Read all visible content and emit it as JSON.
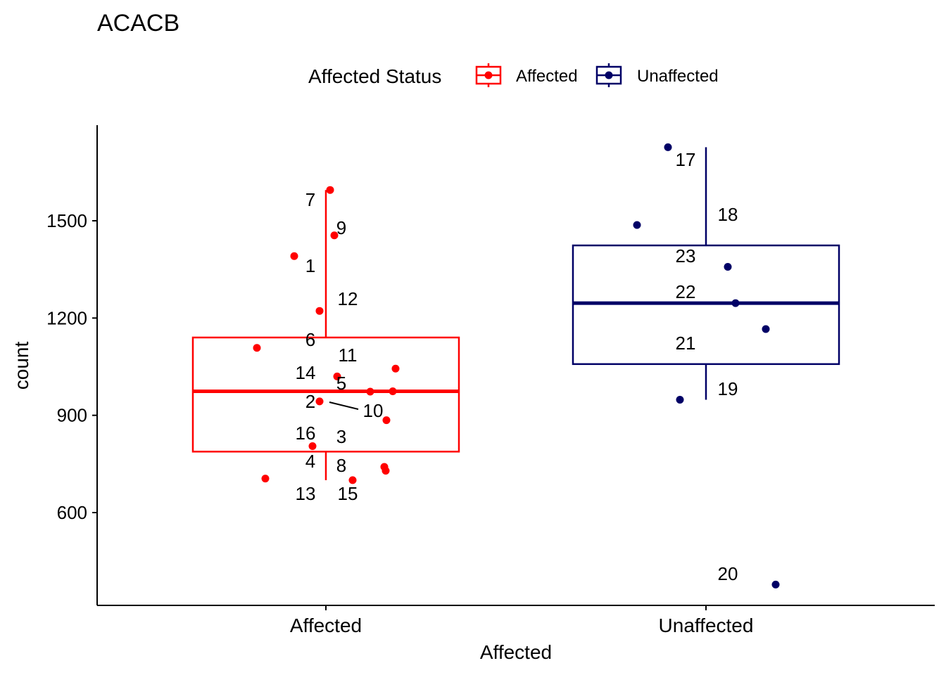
{
  "chart_data": {
    "type": "boxplot",
    "title": "ACACB",
    "xlabel": "Affected",
    "ylabel": "count",
    "ylim": [
      350,
      1785
    ],
    "yticks": [
      600,
      900,
      1200,
      1500
    ],
    "categories": [
      "Affected",
      "Unaffected"
    ],
    "legend": {
      "title": "Affected Status",
      "position": "top",
      "entries": [
        "Affected",
        "Unaffected"
      ]
    },
    "colors": {
      "Affected": "#ff0000",
      "Unaffected": "#000066"
    },
    "boxes": [
      {
        "group": "Affected",
        "whisker_low": 700,
        "q1": 788,
        "median": 974,
        "q3": 1140,
        "whisker_high": 1595
      },
      {
        "group": "Unaffected",
        "whisker_low": 948,
        "q1": 1058,
        "median": 1246,
        "q3": 1424,
        "whisker_high": 1727
      }
    ],
    "points": [
      {
        "id": "1",
        "group": "Affected",
        "value": 1391
      },
      {
        "id": "2",
        "group": "Affected",
        "value": 943
      },
      {
        "id": "3",
        "group": "Affected",
        "value": 885
      },
      {
        "id": "4",
        "group": "Affected",
        "value": 741
      },
      {
        "id": "5",
        "group": "Affected",
        "value": 973
      },
      {
        "id": "6",
        "group": "Affected",
        "value": 1108
      },
      {
        "id": "7",
        "group": "Affected",
        "value": 1595
      },
      {
        "id": "8",
        "group": "Affected",
        "value": 729
      },
      {
        "id": "9",
        "group": "Affected",
        "value": 1455
      },
      {
        "id": "10",
        "group": "Affected",
        "value": 974
      },
      {
        "id": "11",
        "group": "Affected",
        "value": 1020
      },
      {
        "id": "12",
        "group": "Affected",
        "value": 1222
      },
      {
        "id": "13",
        "group": "Affected",
        "value": 705
      },
      {
        "id": "14",
        "group": "Affected",
        "value": 1044
      },
      {
        "id": "15",
        "group": "Affected",
        "value": 700
      },
      {
        "id": "16",
        "group": "Affected",
        "value": 805
      },
      {
        "id": "17",
        "group": "Unaffected",
        "value": 1727
      },
      {
        "id": "18",
        "group": "Unaffected",
        "value": 1487
      },
      {
        "id": "19",
        "group": "Unaffected",
        "value": 948
      },
      {
        "id": "20",
        "group": "Unaffected",
        "value": 378
      },
      {
        "id": "21",
        "group": "Unaffected",
        "value": 1166
      },
      {
        "id": "22",
        "group": "Unaffected",
        "value": 1246
      },
      {
        "id": "23",
        "group": "Unaffected",
        "value": 1358
      }
    ]
  }
}
